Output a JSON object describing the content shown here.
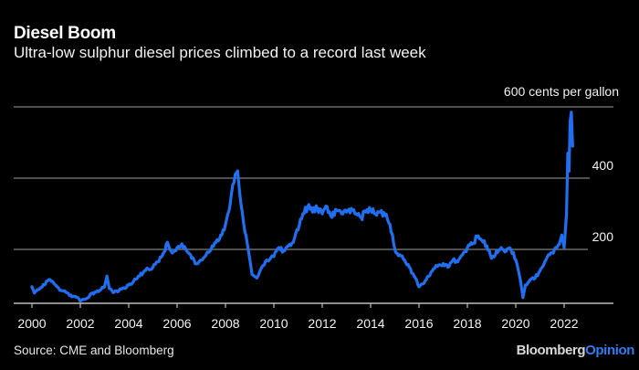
{
  "chart_data": {
    "type": "line",
    "title": "Diesel Boom",
    "subtitle": "Ultra-low sulphur diesel prices climbed to a record last week",
    "unit_label": "600 cents per gallon",
    "xlabel": "",
    "ylabel": "cents per gallon",
    "xlim": [
      1999.4,
      2024.2
    ],
    "ylim": [
      50,
      600
    ],
    "y_gridlines": [
      200,
      400,
      600
    ],
    "y_tick_labels": [
      "200",
      "400",
      "600 cents per gallon"
    ],
    "x_ticks": [
      2000,
      2002,
      2004,
      2006,
      2008,
      2010,
      2012,
      2014,
      2016,
      2018,
      2020,
      2022
    ],
    "x_tick_labels": [
      "2000",
      "2002",
      "2004",
      "2006",
      "2008",
      "2010",
      "2012",
      "2014",
      "2016",
      "2018",
      "2020",
      "2022"
    ],
    "grid": true,
    "legend": "none",
    "series": [
      {
        "name": "Ultra-low sulphur diesel",
        "color": "#1f6ff0",
        "x": [
          2000.0,
          2000.1,
          2000.2,
          2000.35,
          2000.5,
          2000.7,
          2000.9,
          2001.0,
          2001.2,
          2001.4,
          2001.6,
          2001.8,
          2002.0,
          2002.2,
          2002.4,
          2002.6,
          2002.8,
          2003.0,
          2003.1,
          2003.2,
          2003.4,
          2003.6,
          2003.8,
          2004.0,
          2004.2,
          2004.4,
          2004.6,
          2004.8,
          2005.0,
          2005.2,
          2005.4,
          2005.6,
          2005.7,
          2005.8,
          2006.0,
          2006.2,
          2006.4,
          2006.6,
          2006.8,
          2007.0,
          2007.2,
          2007.4,
          2007.6,
          2007.8,
          2008.0,
          2008.2,
          2008.4,
          2008.5,
          2008.6,
          2008.8,
          2009.0,
          2009.1,
          2009.3,
          2009.5,
          2009.7,
          2010.0,
          2010.2,
          2010.4,
          2010.6,
          2010.8,
          2011.0,
          2011.2,
          2011.4,
          2011.6,
          2011.8,
          2012.0,
          2012.2,
          2012.4,
          2012.6,
          2012.8,
          2013.0,
          2013.2,
          2013.4,
          2013.6,
          2013.8,
          2014.0,
          2014.2,
          2014.4,
          2014.6,
          2014.8,
          2015.0,
          2015.2,
          2015.4,
          2015.6,
          2015.8,
          2016.0,
          2016.2,
          2016.4,
          2016.6,
          2016.8,
          2017.0,
          2017.2,
          2017.4,
          2017.6,
          2017.8,
          2018.0,
          2018.2,
          2018.4,
          2018.6,
          2018.8,
          2019.0,
          2019.2,
          2019.4,
          2019.6,
          2019.8,
          2020.0,
          2020.2,
          2020.3,
          2020.4,
          2020.6,
          2020.8,
          2021.0,
          2021.2,
          2021.4,
          2021.6,
          2021.8,
          2021.9,
          2022.0,
          2022.1,
          2022.15,
          2022.2,
          2022.25,
          2022.3,
          2022.35
        ],
        "values": [
          95,
          78,
          85,
          92,
          100,
          115,
          105,
          98,
          85,
          80,
          72,
          68,
          55,
          60,
          72,
          80,
          85,
          95,
          125,
          90,
          80,
          85,
          92,
          100,
          110,
          125,
          135,
          145,
          150,
          165,
          185,
          220,
          200,
          190,
          205,
          215,
          195,
          175,
          160,
          170,
          185,
          200,
          220,
          240,
          270,
          330,
          410,
          420,
          350,
          250,
          175,
          130,
          120,
          150,
          170,
          180,
          205,
          195,
          210,
          220,
          255,
          300,
          320,
          305,
          315,
          300,
          320,
          290,
          310,
          300,
          305,
          315,
          300,
          290,
          305,
          310,
          300,
          305,
          295,
          270,
          200,
          185,
          170,
          150,
          125,
          95,
          105,
          125,
          145,
          155,
          160,
          150,
          170,
          165,
          185,
          205,
          215,
          235,
          225,
          210,
          175,
          195,
          205,
          195,
          200,
          170,
          110,
          65,
          100,
          115,
          120,
          140,
          165,
          185,
          200,
          215,
          240,
          205,
          300,
          470,
          420,
          560,
          585,
          490
        ]
      }
    ]
  },
  "footer": {
    "source": "Source: CME and Bloomberg",
    "brand_part1": "Bloomberg",
    "brand_part2": "Opinion"
  }
}
